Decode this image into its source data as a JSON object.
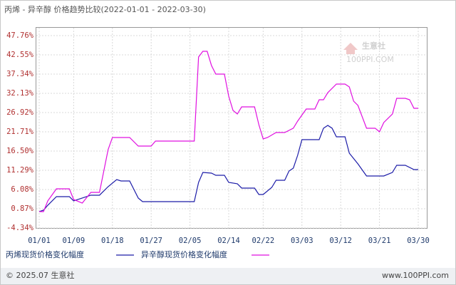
{
  "chart_data": {
    "type": "line",
    "title": "丙烯 - 异辛醇 价格趋势比较(2022-01-01 - 2022-03-30)",
    "watermark": "生意社",
    "watermark_url": "100PPI.COM",
    "footer_left": "© 2025.07 生意社",
    "footer_right": "www.100PPI.com",
    "grid": true,
    "xlim": [
      "2022-01-01",
      "2022-03-30"
    ],
    "xticks": [
      {
        "value": "2022-01-01",
        "label": "01/01"
      },
      {
        "value": "2022-01-09",
        "label": "01/09"
      },
      {
        "value": "2022-01-18",
        "label": "01/18"
      },
      {
        "value": "2022-01-27",
        "label": "01/27"
      },
      {
        "value": "2022-02-05",
        "label": "02/05"
      },
      {
        "value": "2022-02-14",
        "label": "02/14"
      },
      {
        "value": "2022-02-22",
        "label": "02/22"
      },
      {
        "value": "2022-03-03",
        "label": "03/03"
      },
      {
        "value": "2022-03-12",
        "label": "03/12"
      },
      {
        "value": "2022-03-21",
        "label": "03/21"
      },
      {
        "value": "2022-03-30",
        "label": "03/30"
      }
    ],
    "ylim": [
      -4.34,
      47.76
    ],
    "yticks": [
      {
        "value": -4.34,
        "label": "-4.34%"
      },
      {
        "value": 0.87,
        "label": "0.87%"
      },
      {
        "value": 6.08,
        "label": "6.08%"
      },
      {
        "value": 11.29,
        "label": "11.29%"
      },
      {
        "value": 16.5,
        "label": "16.50%"
      },
      {
        "value": 21.71,
        "label": "21.71%"
      },
      {
        "value": 26.92,
        "label": "26.92%"
      },
      {
        "value": 32.13,
        "label": "32.13%"
      },
      {
        "value": 37.34,
        "label": "37.34%"
      },
      {
        "value": 42.55,
        "label": "42.55%"
      },
      {
        "value": 47.76,
        "label": "47.76%"
      }
    ],
    "series": [
      {
        "name": "丙烯现货价格变化幅度",
        "color": "#1c1ca8",
        "x": [
          "2022-01-01",
          "2022-01-02",
          "2022-01-03",
          "2022-01-05",
          "2022-01-08",
          "2022-01-09",
          "2022-01-11",
          "2022-01-13",
          "2022-01-15",
          "2022-01-17",
          "2022-01-19",
          "2022-01-20",
          "2022-01-22",
          "2022-01-24",
          "2022-01-25",
          "2022-02-06",
          "2022-02-07",
          "2022-02-08",
          "2022-02-10",
          "2022-02-11",
          "2022-02-13",
          "2022-02-14",
          "2022-02-16",
          "2022-02-17",
          "2022-02-20",
          "2022-02-21",
          "2022-02-22",
          "2022-02-24",
          "2022-02-25",
          "2022-02-27",
          "2022-02-28",
          "2022-03-01",
          "2022-03-02",
          "2022-03-03",
          "2022-03-07",
          "2022-03-08",
          "2022-03-09",
          "2022-03-10",
          "2022-03-11",
          "2022-03-13",
          "2022-03-14",
          "2022-03-16",
          "2022-03-18",
          "2022-03-22",
          "2022-03-24",
          "2022-03-25",
          "2022-03-27",
          "2022-03-29",
          "2022-03-30"
        ],
        "values": [
          0.1,
          0.49,
          1.83,
          4.15,
          4.15,
          3.0,
          3.77,
          4.54,
          4.54,
          6.85,
          8.78,
          8.4,
          8.4,
          3.77,
          2.8,
          2.8,
          8.01,
          10.71,
          10.52,
          9.94,
          9.94,
          8.01,
          7.63,
          6.47,
          6.47,
          4.73,
          4.73,
          6.66,
          8.59,
          8.59,
          11.1,
          11.87,
          15.34,
          19.59,
          19.59,
          22.68,
          23.45,
          22.68,
          20.36,
          20.36,
          15.92,
          13.03,
          9.75,
          9.75,
          10.71,
          12.64,
          12.64,
          11.48,
          11.48
        ]
      },
      {
        "name": "异辛醇现货价格变化幅度",
        "color": "#e010e0",
        "x": [
          "2022-01-01",
          "2022-01-02",
          "2022-01-03",
          "2022-01-05",
          "2022-01-08",
          "2022-01-09",
          "2022-01-11",
          "2022-01-13",
          "2022-01-15",
          "2022-01-17",
          "2022-01-18",
          "2022-01-22",
          "2022-01-24",
          "2022-01-27",
          "2022-01-28",
          "2022-02-06",
          "2022-02-07",
          "2022-02-08",
          "2022-02-09",
          "2022-02-10",
          "2022-02-11",
          "2022-02-13",
          "2022-02-14",
          "2022-02-15",
          "2022-02-16",
          "2022-02-17",
          "2022-02-20",
          "2022-02-21",
          "2022-02-22",
          "2022-02-23",
          "2022-02-25",
          "2022-02-27",
          "2022-03-01",
          "2022-03-02",
          "2022-03-04",
          "2022-03-06",
          "2022-03-07",
          "2022-03-08",
          "2022-03-09",
          "2022-03-11",
          "2022-03-13",
          "2022-03-14",
          "2022-03-15",
          "2022-03-16",
          "2022-03-18",
          "2022-03-20",
          "2022-03-21",
          "2022-03-22",
          "2022-03-24",
          "2022-03-25",
          "2022-03-27",
          "2022-03-28",
          "2022-03-29",
          "2022-03-30"
        ],
        "values": [
          0.1,
          0.1,
          3.0,
          6.27,
          6.27,
          3.38,
          2.41,
          5.31,
          5.31,
          16.89,
          20.17,
          20.17,
          17.85,
          17.85,
          19.2,
          19.2,
          41.97,
          43.51,
          43.51,
          39.66,
          37.34,
          37.34,
          31.36,
          27.5,
          26.53,
          28.46,
          28.46,
          23.64,
          19.78,
          20.17,
          21.52,
          21.52,
          22.68,
          24.61,
          27.88,
          27.88,
          30.39,
          30.39,
          32.32,
          34.64,
          34.64,
          33.87,
          30.01,
          28.85,
          22.68,
          22.68,
          21.71,
          24.22,
          26.53,
          30.78,
          30.78,
          30.39,
          28.08,
          28.08
        ]
      }
    ]
  }
}
